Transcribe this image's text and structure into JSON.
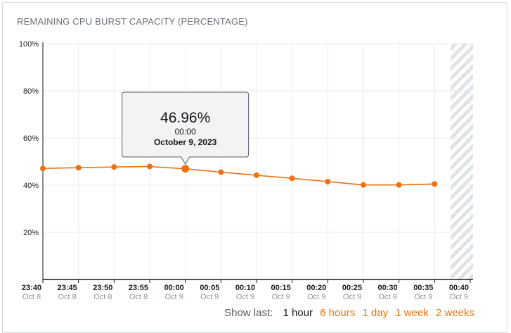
{
  "title": "REMAINING CPU BURST CAPACITY (PERCENTAGE)",
  "colors": {
    "series": "#ec7211",
    "grid": "#e9ebed",
    "axis": "#16191f",
    "hatch": "#d5dbdb"
  },
  "range_selector": {
    "label": "Show last:",
    "options": [
      "1 hour",
      "6 hours",
      "1 day",
      "1 week",
      "2 weeks"
    ],
    "active": "1 hour"
  },
  "tooltip": {
    "value": "46.96%",
    "time": "00:00",
    "date": "October 9, 2023",
    "point_index": 4
  },
  "chart_data": {
    "type": "line",
    "title": "REMAINING CPU BURST CAPACITY (PERCENTAGE)",
    "ylim": [
      0,
      100
    ],
    "yticks": [
      "100%",
      "80%",
      "60%",
      "40%",
      "20%"
    ],
    "x_ticks": [
      {
        "time": "23:40",
        "date": "Oct 8"
      },
      {
        "time": "23:45",
        "date": "Oct 8"
      },
      {
        "time": "23:50",
        "date": "Oct 8"
      },
      {
        "time": "23:55",
        "date": "Oct 8"
      },
      {
        "time": "00:00",
        "date": "Oct 9"
      },
      {
        "time": "00:05",
        "date": "Oct 9"
      },
      {
        "time": "00:10",
        "date": "Oct 9"
      },
      {
        "time": "00:15",
        "date": "Oct 9"
      },
      {
        "time": "00:20",
        "date": "Oct 9"
      },
      {
        "time": "00:25",
        "date": "Oct 9"
      },
      {
        "time": "00:30",
        "date": "Oct 9"
      },
      {
        "time": "00:35",
        "date": "Oct 9"
      },
      {
        "time": "00:40",
        "date": "Oct 9"
      }
    ],
    "series": [
      {
        "values": [
          47.1,
          47.4,
          47.7,
          47.9,
          46.96,
          45.5,
          44.2,
          42.9,
          41.5,
          40.1,
          40.1,
          40.5
        ]
      }
    ],
    "grid": true,
    "hatched_region": "after 00:35"
  }
}
